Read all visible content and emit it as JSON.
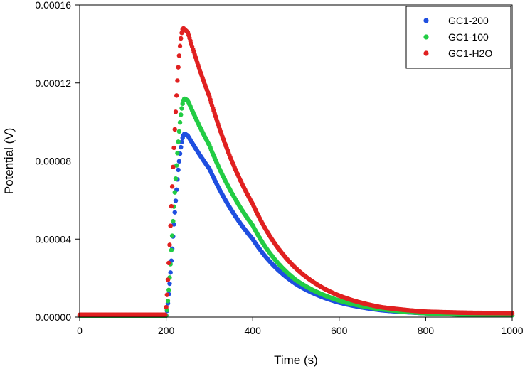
{
  "chart_data": {
    "type": "scatter",
    "title": "",
    "xlabel": "Time (s)",
    "ylabel": "Potential (V)",
    "xlim": [
      0,
      1000
    ],
    "ylim": [
      0,
      0.00016
    ],
    "xticks": [
      0,
      200,
      400,
      600,
      800,
      1000
    ],
    "xtick_labels": [
      "0",
      "200",
      "400",
      "600",
      "800",
      "1000"
    ],
    "yticks": [
      0,
      4e-05,
      8e-05,
      0.00012,
      0.00016
    ],
    "ytick_labels": [
      "0.00000",
      "0.00004",
      "0.00008",
      "0.00012",
      "0.00016"
    ],
    "grid": false,
    "legend_position": "top-right",
    "series": [
      {
        "name": "GC1-200",
        "color": "#1f4fe0",
        "baseline": 8e-07,
        "onset": 200,
        "peak_time": 243,
        "peak": 9.4e-05,
        "tail": [
          [
            250,
            9.3e-05
          ],
          [
            300,
            7.6e-05
          ],
          [
            400,
            4e-05
          ],
          [
            500,
            1.7e-05
          ],
          [
            600,
            7.5e-06
          ],
          [
            700,
            3.5e-06
          ],
          [
            800,
            2e-06
          ],
          [
            900,
            1.5e-06
          ],
          [
            1000,
            1e-06
          ]
        ]
      },
      {
        "name": "GC1-100",
        "color": "#22cc44",
        "baseline": 8e-07,
        "onset": 200,
        "peak_time": 243,
        "peak": 0.000112,
        "tail": [
          [
            250,
            0.000111
          ],
          [
            300,
            8.8e-05
          ],
          [
            400,
            4.7e-05
          ],
          [
            500,
            1.9e-05
          ],
          [
            600,
            8.5e-06
          ],
          [
            700,
            4e-06
          ],
          [
            800,
            2e-06
          ],
          [
            900,
            1.2e-06
          ],
          [
            1000,
            1e-06
          ]
        ]
      },
      {
        "name": "GC1-H2O",
        "color": "#e02020",
        "baseline": 1.2e-06,
        "onset": 198,
        "peak_time": 240,
        "peak": 0.000148,
        "tail": [
          [
            250,
            0.000146
          ],
          [
            300,
            0.000113
          ],
          [
            400,
            5.8e-05
          ],
          [
            500,
            2.5e-05
          ],
          [
            600,
            1.1e-05
          ],
          [
            700,
            5e-06
          ],
          [
            800,
            2.8e-06
          ],
          [
            900,
            2.2e-06
          ],
          [
            1000,
            2e-06
          ]
        ]
      }
    ]
  }
}
